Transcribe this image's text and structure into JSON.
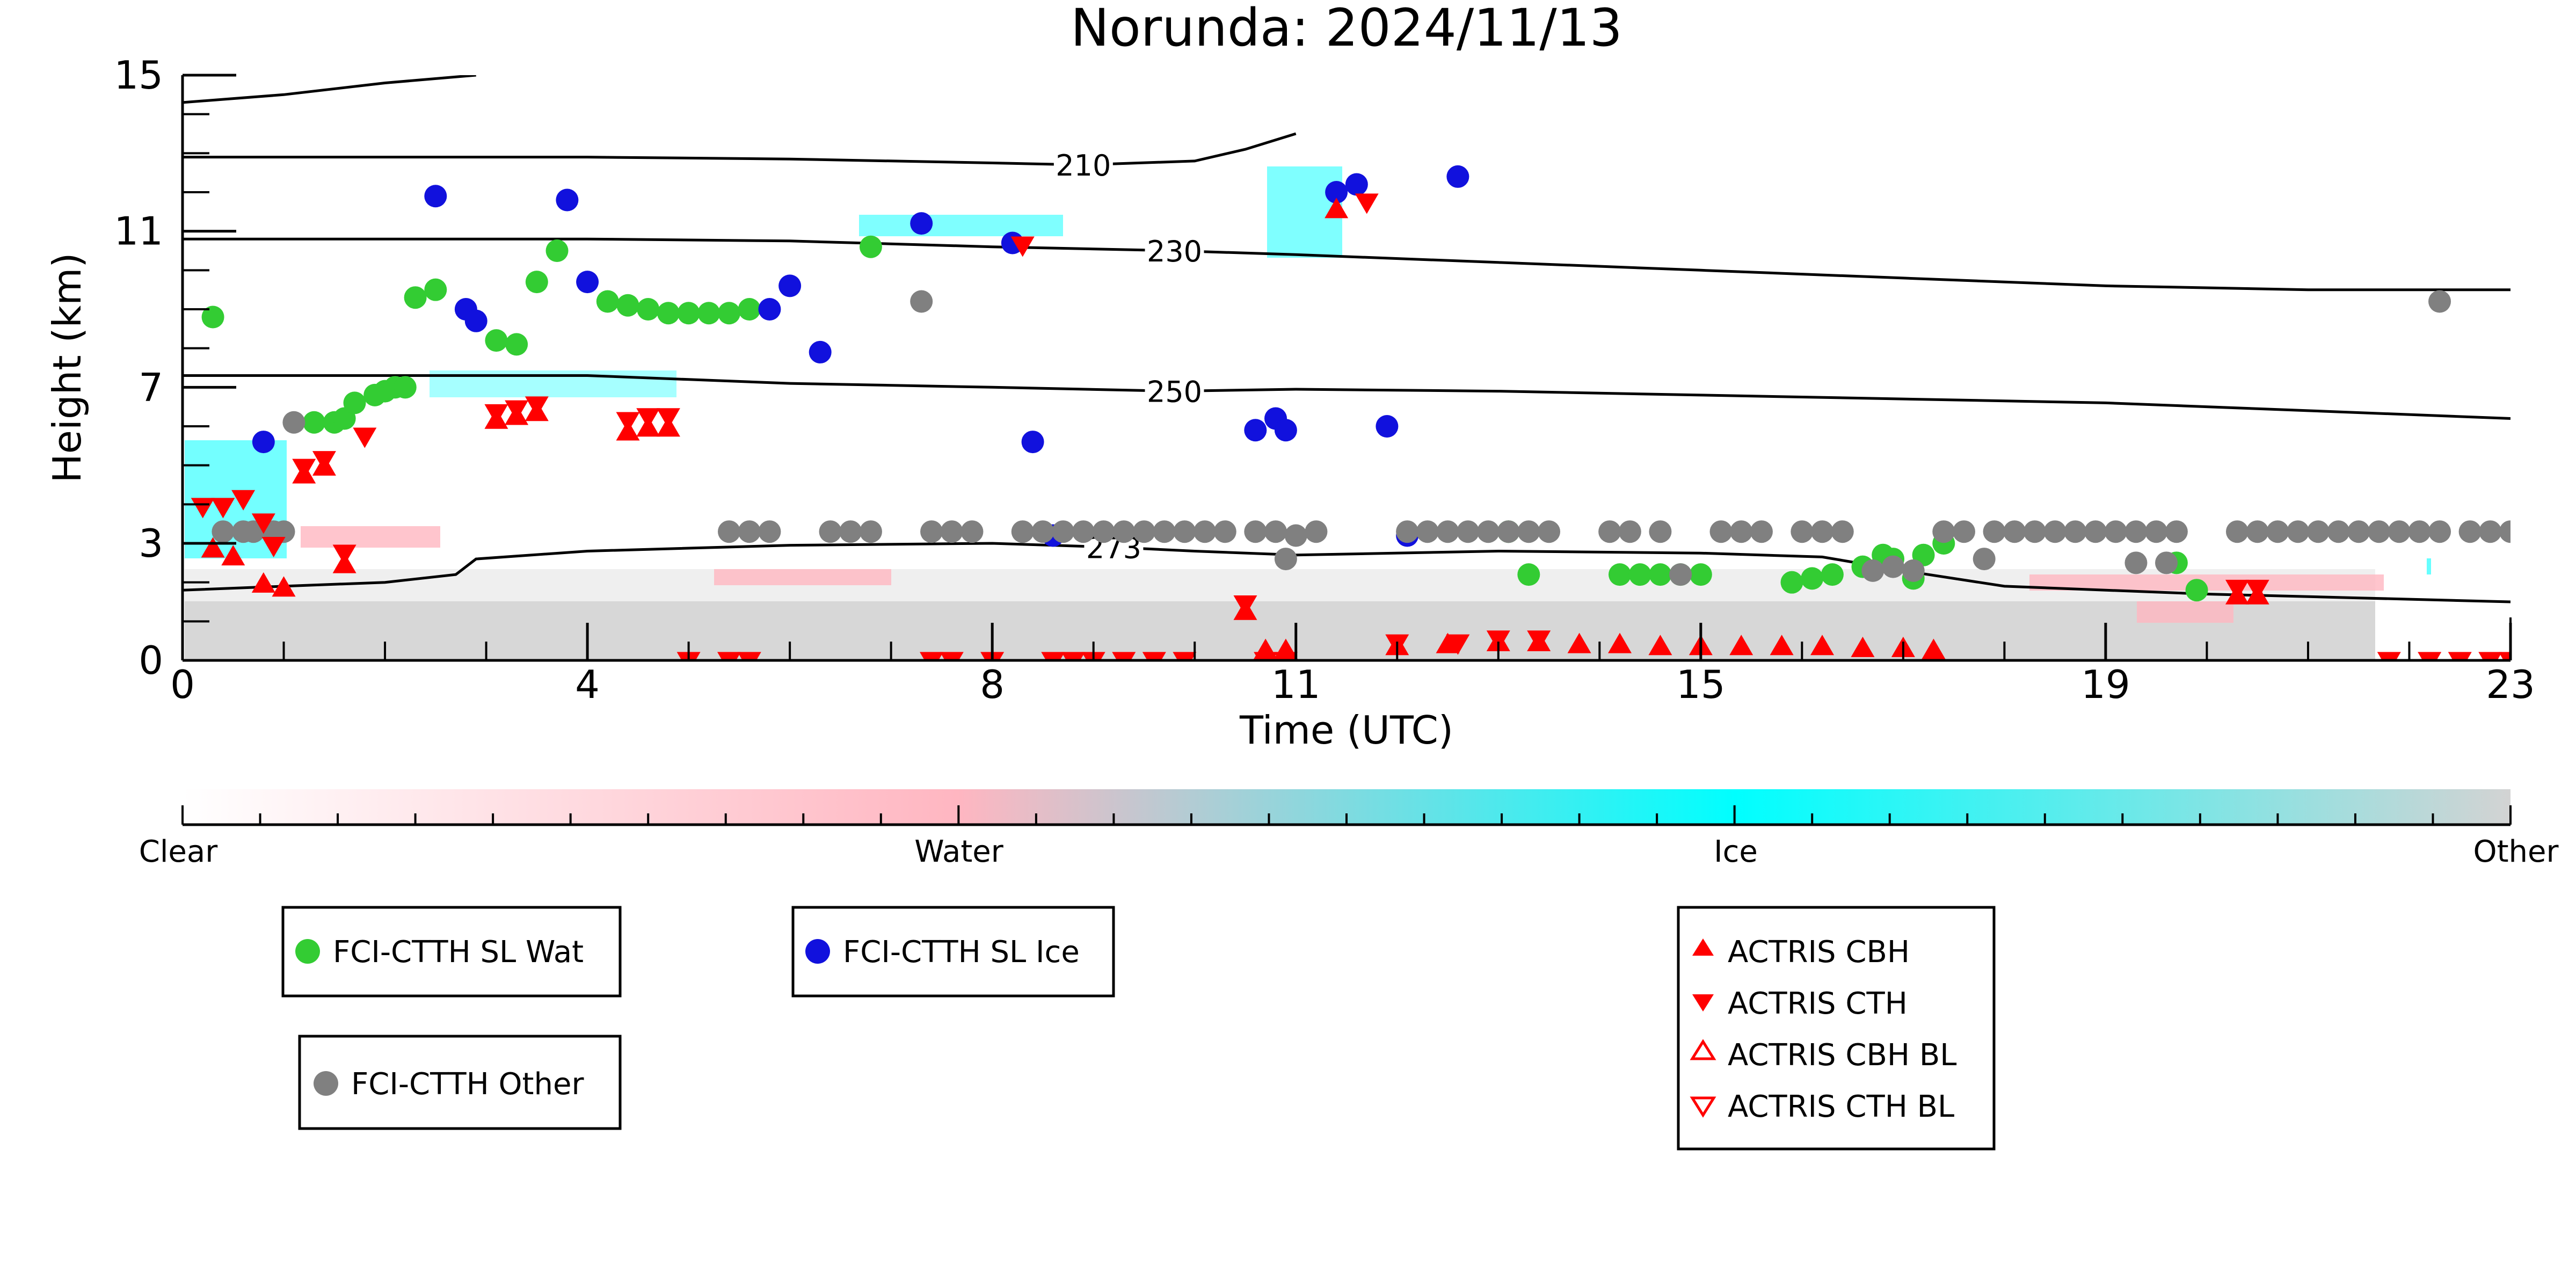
{
  "chart_data": {
    "type": "scatter",
    "title": "Norunda: 2024/11/13",
    "xlabel": "Time (UTC)",
    "ylabel": "Height (km)",
    "xlim": [
      0,
      23
    ],
    "ylim": [
      0,
      15
    ],
    "x_ticks": [
      0,
      4,
      8,
      11,
      15,
      19,
      23
    ],
    "y_ticks": [
      0,
      3,
      7,
      11,
      15
    ],
    "grid": false,
    "colorbar": {
      "labels": [
        "Clear",
        "Water",
        "Ice",
        "Other"
      ],
      "colors": [
        "#ffffff",
        "#ffb6c1",
        "#00ffff",
        "#d3d3d3"
      ]
    },
    "isotherms": [
      {
        "label": "210",
        "label_x": 8.9,
        "points": [
          [
            0,
            12.9
          ],
          [
            2,
            12.9
          ],
          [
            4,
            12.9
          ],
          [
            6,
            12.85
          ],
          [
            8,
            12.75
          ],
          [
            8.9,
            12.7
          ],
          [
            10,
            12.8
          ],
          [
            10.5,
            13.1
          ],
          [
            11,
            13.5
          ]
        ]
      },
      {
        "label": "230",
        "label_x": 9.8,
        "points": [
          [
            0,
            10.8
          ],
          [
            2,
            10.8
          ],
          [
            4,
            10.8
          ],
          [
            6,
            10.75
          ],
          [
            8,
            10.6
          ],
          [
            9.8,
            10.5
          ],
          [
            11,
            10.4
          ],
          [
            13,
            10.2
          ],
          [
            15,
            10.0
          ],
          [
            17,
            9.8
          ],
          [
            19,
            9.6
          ],
          [
            21,
            9.5
          ],
          [
            23,
            9.5
          ]
        ]
      },
      {
        "label": "250",
        "label_x": 9.8,
        "points": [
          [
            0,
            7.3
          ],
          [
            2,
            7.3
          ],
          [
            4,
            7.3
          ],
          [
            5,
            7.2
          ],
          [
            6,
            7.1
          ],
          [
            8,
            7.0
          ],
          [
            9.8,
            6.9
          ],
          [
            11,
            6.95
          ],
          [
            13,
            6.9
          ],
          [
            15,
            6.8
          ],
          [
            17,
            6.7
          ],
          [
            19,
            6.6
          ],
          [
            21,
            6.4
          ],
          [
            23,
            6.2
          ]
        ]
      },
      {
        "label": "273",
        "label_x": 9.2,
        "points": [
          [
            0,
            1.8
          ],
          [
            1,
            1.9
          ],
          [
            2,
            2.0
          ],
          [
            2.7,
            2.2
          ],
          [
            2.9,
            2.6
          ],
          [
            4,
            2.8
          ],
          [
            6,
            2.95
          ],
          [
            8,
            3.0
          ],
          [
            9.2,
            2.9
          ],
          [
            10,
            2.8
          ],
          [
            11,
            2.7
          ],
          [
            13,
            2.8
          ],
          [
            15,
            2.75
          ],
          [
            16.2,
            2.65
          ],
          [
            17,
            2.3
          ],
          [
            18,
            1.9
          ],
          [
            20,
            1.7
          ],
          [
            21.5,
            1.6
          ],
          [
            23,
            1.5
          ]
        ]
      },
      {
        "label": "",
        "label_x": null,
        "points": [
          [
            0,
            14.3
          ],
          [
            1,
            14.5
          ],
          [
            2,
            14.8
          ],
          [
            2.9,
            15.0
          ]
        ]
      }
    ],
    "series": [
      {
        "name": "FCI-CTTH SL Wat",
        "marker": "circle",
        "color": "#33cc33",
        "points": [
          [
            0.3,
            8.8
          ],
          [
            1.3,
            6.1
          ],
          [
            1.5,
            6.1
          ],
          [
            1.6,
            6.2
          ],
          [
            1.7,
            6.6
          ],
          [
            1.9,
            6.8
          ],
          [
            2.0,
            6.9
          ],
          [
            2.1,
            7.0
          ],
          [
            2.2,
            7.0
          ],
          [
            2.3,
            9.3
          ],
          [
            2.5,
            9.5
          ],
          [
            3.1,
            8.2
          ],
          [
            3.3,
            8.1
          ],
          [
            3.5,
            9.7
          ],
          [
            3.7,
            10.5
          ],
          [
            4.2,
            9.2
          ],
          [
            4.4,
            9.1
          ],
          [
            4.6,
            9.0
          ],
          [
            4.8,
            8.9
          ],
          [
            5.0,
            8.9
          ],
          [
            5.2,
            8.9
          ],
          [
            5.4,
            8.9
          ],
          [
            5.6,
            9.0
          ],
          [
            6.8,
            10.6
          ],
          [
            13.1,
            3.3
          ],
          [
            13.3,
            2.2
          ],
          [
            14.2,
            2.2
          ],
          [
            14.4,
            2.2
          ],
          [
            14.6,
            2.2
          ],
          [
            14.8,
            2.2
          ],
          [
            15.0,
            2.2
          ],
          [
            15.9,
            2.0
          ],
          [
            16.1,
            2.1
          ],
          [
            16.3,
            2.2
          ],
          [
            16.6,
            2.4
          ],
          [
            16.8,
            2.7
          ],
          [
            16.9,
            2.6
          ],
          [
            17.1,
            2.1
          ],
          [
            17.2,
            2.7
          ],
          [
            17.4,
            3.0
          ],
          [
            19.7,
            2.5
          ],
          [
            19.9,
            1.8
          ]
        ]
      },
      {
        "name": "FCI-CTTH SL Ice",
        "marker": "circle",
        "color": "#1111dd",
        "points": [
          [
            0.8,
            5.6
          ],
          [
            2.5,
            11.9
          ],
          [
            2.8,
            9.0
          ],
          [
            2.9,
            8.7
          ],
          [
            3.8,
            11.8
          ],
          [
            4.0,
            9.7
          ],
          [
            5.8,
            9.0
          ],
          [
            6.0,
            9.6
          ],
          [
            6.3,
            7.9
          ],
          [
            7.3,
            11.2
          ],
          [
            8.2,
            10.7
          ],
          [
            8.4,
            5.6
          ],
          [
            8.6,
            3.2
          ],
          [
            10.6,
            5.9
          ],
          [
            10.8,
            6.2
          ],
          [
            10.9,
            5.9
          ],
          [
            11.4,
            12.0
          ],
          [
            11.6,
            12.2
          ],
          [
            11.9,
            6.0
          ],
          [
            12.1,
            3.2
          ],
          [
            12.6,
            12.4
          ]
        ]
      },
      {
        "name": "FCI-CTTH Other",
        "marker": "circle",
        "color": "#808080",
        "points": [
          [
            0.4,
            3.3
          ],
          [
            0.6,
            3.3
          ],
          [
            0.7,
            3.3
          ],
          [
            0.9,
            3.3
          ],
          [
            1.0,
            3.3
          ],
          [
            1.1,
            6.1
          ],
          [
            5.4,
            3.3
          ],
          [
            5.6,
            3.3
          ],
          [
            5.8,
            3.3
          ],
          [
            6.4,
            3.3
          ],
          [
            6.6,
            3.3
          ],
          [
            6.8,
            3.3
          ],
          [
            7.3,
            9.2
          ],
          [
            7.4,
            3.3
          ],
          [
            7.6,
            3.3
          ],
          [
            7.8,
            3.3
          ],
          [
            8.3,
            3.3
          ],
          [
            8.5,
            3.3
          ],
          [
            8.7,
            3.3
          ],
          [
            8.9,
            3.3
          ],
          [
            9.1,
            3.3
          ],
          [
            9.3,
            3.3
          ],
          [
            9.5,
            3.3
          ],
          [
            9.7,
            3.3
          ],
          [
            9.9,
            3.3
          ],
          [
            10.1,
            3.3
          ],
          [
            10.3,
            3.3
          ],
          [
            10.6,
            3.3
          ],
          [
            10.8,
            3.3
          ],
          [
            10.9,
            2.6
          ],
          [
            11.0,
            3.2
          ],
          [
            11.2,
            3.3
          ],
          [
            12.1,
            3.3
          ],
          [
            12.3,
            3.3
          ],
          [
            12.5,
            3.3
          ],
          [
            12.7,
            3.3
          ],
          [
            12.9,
            3.3
          ],
          [
            13.1,
            3.3
          ],
          [
            13.3,
            3.3
          ],
          [
            13.5,
            3.3
          ],
          [
            14.1,
            3.3
          ],
          [
            14.3,
            3.3
          ],
          [
            14.6,
            3.3
          ],
          [
            14.8,
            2.2
          ],
          [
            15.2,
            3.3
          ],
          [
            15.4,
            3.3
          ],
          [
            15.6,
            3.3
          ],
          [
            16.0,
            3.3
          ],
          [
            16.2,
            3.3
          ],
          [
            16.4,
            3.3
          ],
          [
            16.7,
            2.3
          ],
          [
            16.9,
            2.4
          ],
          [
            17.1,
            2.3
          ],
          [
            17.4,
            3.3
          ],
          [
            17.6,
            3.3
          ],
          [
            17.8,
            2.6
          ],
          [
            17.9,
            3.3
          ],
          [
            18.1,
            3.3
          ],
          [
            18.3,
            3.3
          ],
          [
            18.5,
            3.3
          ],
          [
            18.7,
            3.3
          ],
          [
            18.9,
            3.3
          ],
          [
            19.1,
            3.3
          ],
          [
            19.3,
            3.3
          ],
          [
            19.5,
            3.3
          ],
          [
            19.7,
            3.3
          ],
          [
            20.3,
            3.3
          ],
          [
            20.5,
            3.3
          ],
          [
            20.7,
            3.3
          ],
          [
            20.9,
            3.3
          ],
          [
            21.1,
            3.3
          ],
          [
            21.3,
            3.3
          ],
          [
            21.5,
            3.3
          ],
          [
            21.7,
            3.3
          ],
          [
            21.9,
            3.3
          ],
          [
            22.1,
            3.3
          ],
          [
            22.3,
            3.3
          ],
          [
            22.6,
            3.3
          ],
          [
            22.8,
            3.3
          ],
          [
            23.0,
            3.3
          ],
          [
            22.3,
            9.2
          ],
          [
            19.6,
            2.5
          ],
          [
            19.3,
            2.5
          ]
        ]
      },
      {
        "name": "ACTRIS CBH",
        "marker": "triangle-up",
        "color": "#ff0000",
        "points": [
          [
            0.3,
            2.8
          ],
          [
            0.5,
            2.6
          ],
          [
            0.8,
            1.9
          ],
          [
            1.0,
            1.8
          ],
          [
            1.2,
            4.7
          ],
          [
            1.4,
            4.9
          ],
          [
            1.6,
            2.4
          ],
          [
            3.1,
            6.1
          ],
          [
            3.3,
            6.2
          ],
          [
            3.5,
            6.3
          ],
          [
            4.4,
            5.8
          ],
          [
            4.6,
            5.9
          ],
          [
            4.8,
            5.9
          ],
          [
            10.5,
            1.2
          ],
          [
            10.9,
            0.2
          ],
          [
            10.7,
            0.2
          ],
          [
            11.4,
            11.5
          ],
          [
            12.0,
            0.3
          ],
          [
            12.5,
            0.35
          ],
          [
            13.0,
            0.4
          ],
          [
            13.4,
            0.4
          ],
          [
            13.8,
            0.35
          ],
          [
            14.2,
            0.35
          ],
          [
            14.6,
            0.3
          ],
          [
            15.0,
            0.3
          ],
          [
            15.4,
            0.3
          ],
          [
            15.8,
            0.3
          ],
          [
            16.2,
            0.3
          ],
          [
            16.6,
            0.25
          ],
          [
            17.0,
            0.25
          ],
          [
            17.3,
            0.2
          ],
          [
            20.3,
            1.6
          ],
          [
            20.5,
            1.6
          ]
        ]
      },
      {
        "name": "ACTRIS CTH",
        "marker": "triangle-down",
        "color": "#ff0000",
        "points": [
          [
            0.2,
            4.0
          ],
          [
            0.4,
            4.0
          ],
          [
            0.6,
            4.2
          ],
          [
            0.8,
            3.6
          ],
          [
            0.9,
            3.0
          ],
          [
            1.2,
            5.0
          ],
          [
            1.4,
            5.2
          ],
          [
            1.6,
            2.8
          ],
          [
            1.8,
            5.8
          ],
          [
            3.1,
            6.4
          ],
          [
            3.3,
            6.5
          ],
          [
            3.5,
            6.6
          ],
          [
            4.4,
            6.2
          ],
          [
            4.6,
            6.3
          ],
          [
            4.8,
            6.3
          ],
          [
            5.0,
            0.05
          ],
          [
            5.4,
            0.05
          ],
          [
            5.6,
            0.05
          ],
          [
            7.4,
            0.05
          ],
          [
            7.6,
            0.05
          ],
          [
            8.0,
            0.05
          ],
          [
            8.3,
            10.7
          ],
          [
            8.6,
            0.05
          ],
          [
            8.8,
            0.05
          ],
          [
            9.0,
            0.05
          ],
          [
            9.3,
            0.05
          ],
          [
            9.6,
            0.05
          ],
          [
            9.9,
            0.05
          ],
          [
            10.5,
            1.5
          ],
          [
            10.7,
            0.05
          ],
          [
            10.9,
            0.05
          ],
          [
            11.7,
            11.8
          ],
          [
            12.0,
            0.5
          ],
          [
            12.6,
            0.5
          ],
          [
            13.0,
            0.6
          ],
          [
            13.4,
            0.6
          ],
          [
            20.3,
            1.9
          ],
          [
            20.5,
            1.9
          ],
          [
            21.8,
            0.05
          ],
          [
            22.2,
            0.05
          ],
          [
            22.5,
            0.05
          ],
          [
            22.8,
            0.05
          ],
          [
            23.0,
            0.05
          ]
        ]
      },
      {
        "name": "ACTRIS CBH BL",
        "marker": "triangle-up-open",
        "color": "#ff0000",
        "points": []
      },
      {
        "name": "ACTRIS CTH BL",
        "marker": "triangle-down-open",
        "color": "#ff0000",
        "points": []
      }
    ]
  }
}
